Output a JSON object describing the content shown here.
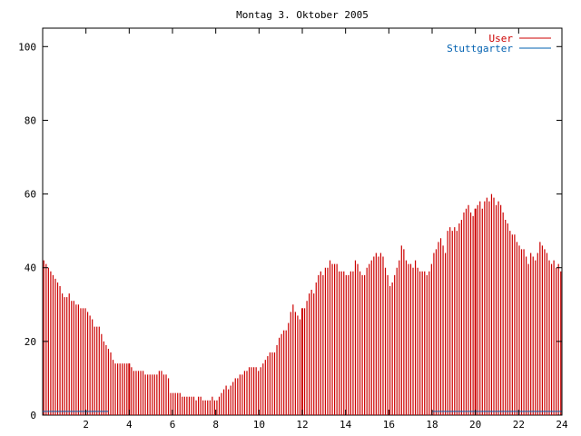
{
  "chart_data": {
    "type": "bar",
    "title": "Montag 3. Oktober 2005",
    "xlabel": "",
    "ylabel": "",
    "xlim": [
      0,
      24
    ],
    "ylim": [
      0,
      105
    ],
    "xticks": [
      "2",
      "4",
      "6",
      "8",
      "10",
      "12",
      "14",
      "16",
      "18",
      "20",
      "22",
      "24"
    ],
    "yticks": [
      "0",
      "20",
      "40",
      "60",
      "80",
      "100"
    ],
    "legend_position": "top-right",
    "grid": false,
    "series": [
      {
        "name": "User",
        "color": "#cc0000",
        "bar_width_hours": 0.0833,
        "values": [
          42,
          41,
          40,
          39,
          38,
          37,
          36,
          35,
          33,
          32,
          32,
          33,
          31,
          31,
          30,
          30,
          29,
          29,
          29,
          28,
          27,
          26,
          24,
          24,
          24,
          22,
          20,
          19,
          18,
          17,
          15,
          14,
          14,
          14,
          14,
          14,
          14,
          14,
          13,
          12,
          12,
          12,
          12,
          12,
          11,
          11,
          11,
          11,
          11,
          11,
          12,
          12,
          11,
          11,
          10,
          6,
          6,
          6,
          6,
          6,
          5,
          5,
          5,
          5,
          5,
          5,
          4,
          5,
          5,
          4,
          4,
          4,
          4,
          5,
          4,
          4,
          5,
          6,
          7,
          8,
          7,
          8,
          9,
          10,
          10,
          11,
          11,
          12,
          12,
          13,
          13,
          13,
          13,
          12,
          13,
          14,
          15,
          16,
          17,
          17,
          17,
          19,
          21,
          22,
          23,
          23,
          25,
          28,
          30,
          28,
          27,
          26,
          27,
          29,
          31,
          33,
          34,
          33,
          36,
          38,
          39,
          38,
          40,
          40,
          42,
          41,
          41,
          41,
          39,
          39,
          39,
          38,
          38,
          39,
          39,
          42,
          41,
          39,
          38,
          38,
          40,
          41,
          42,
          43,
          44,
          43,
          44,
          43,
          40,
          38,
          35,
          36,
          38,
          40,
          42,
          46,
          45,
          42,
          41,
          41,
          40,
          42,
          40,
          39,
          39,
          39,
          38,
          39,
          41,
          44,
          45,
          47,
          48,
          46,
          44,
          50,
          51,
          50,
          51,
          50,
          52,
          53,
          55,
          56,
          57,
          55,
          54,
          56,
          57,
          58,
          56,
          58,
          59,
          58,
          60,
          59,
          57,
          58,
          57,
          55,
          53,
          52,
          50,
          49,
          49,
          47,
          46,
          45,
          45,
          43,
          41,
          44,
          43,
          42,
          44,
          47,
          46,
          45,
          44,
          42,
          41,
          42,
          40,
          41,
          39
        ]
      },
      {
        "name": "Stuttgarter",
        "color": "#0060b0",
        "values": [
          1,
          1,
          1,
          1,
          1,
          1,
          1,
          1,
          1,
          1,
          1,
          1,
          1,
          1,
          1,
          1,
          1,
          1,
          1,
          1,
          1,
          1,
          1,
          1,
          1,
          1,
          1,
          1,
          1,
          1,
          0,
          0,
          0,
          0,
          0,
          0,
          0,
          0,
          0,
          0,
          0,
          0,
          0,
          0,
          0,
          0,
          0,
          0,
          0,
          0,
          0,
          0,
          0,
          0,
          0,
          0,
          0,
          0,
          0,
          0,
          0,
          0,
          0,
          0,
          0,
          0,
          0,
          0,
          0,
          0,
          0,
          0,
          0,
          0,
          0,
          0,
          0,
          0,
          0,
          0,
          0,
          0,
          0,
          0,
          0,
          0,
          0,
          0,
          0,
          0,
          0,
          0,
          0,
          0,
          0,
          0,
          0,
          0,
          0,
          0,
          0,
          0,
          0,
          0,
          0,
          0,
          0,
          0,
          0,
          0,
          0,
          0,
          0,
          0,
          0,
          0,
          0,
          0,
          0,
          0,
          0,
          0,
          0,
          0,
          0,
          0,
          0,
          0,
          0,
          0,
          0,
          0,
          0,
          0,
          0,
          0,
          0,
          0,
          0,
          0,
          0,
          0,
          0,
          0,
          0,
          0,
          0,
          0,
          0,
          0,
          0,
          0,
          0,
          0,
          0,
          0,
          0,
          0,
          0,
          0,
          0,
          0,
          0,
          0,
          0,
          0,
          0,
          0,
          0,
          0,
          0,
          0,
          0,
          0,
          0,
          0,
          0,
          0,
          1,
          1,
          1,
          1,
          1,
          1,
          1,
          1,
          1,
          1,
          1,
          1,
          1,
          1,
          1,
          1,
          1,
          1,
          1,
          1,
          1,
          1,
          1,
          1,
          1,
          1,
          1,
          1,
          1,
          1,
          1,
          1,
          1,
          1,
          1,
          1,
          1,
          1,
          1,
          1,
          1,
          1,
          1,
          1,
          1,
          1,
          1,
          1,
          1,
          1,
          1,
          1,
          1,
          1,
          1,
          1,
          1,
          1,
          1
        ]
      }
    ],
    "markers": [
      {
        "series": "User",
        "x": 4.0,
        "value": 14
      },
      {
        "series": "User",
        "x": 12.0,
        "value": 29
      },
      {
        "series": "User",
        "x": 20.0,
        "value": 56
      }
    ]
  }
}
